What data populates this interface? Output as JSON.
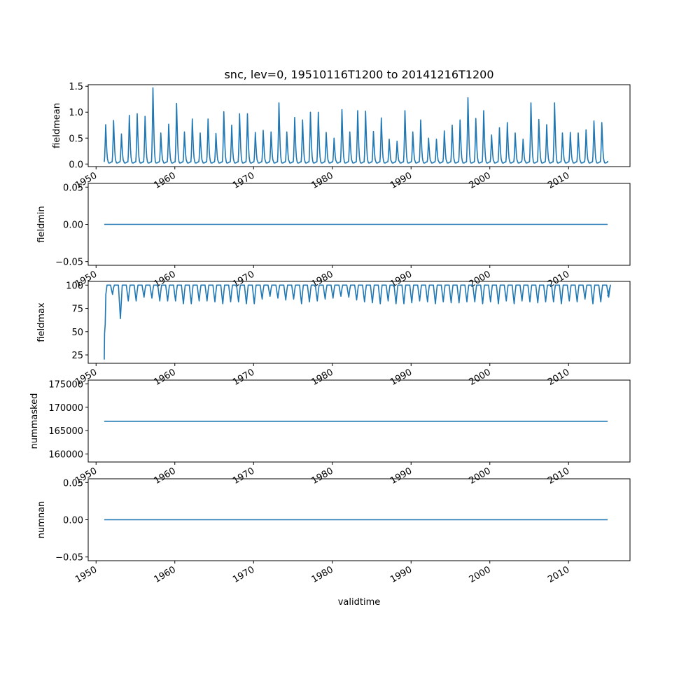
{
  "title": "snc, lev=0, 19510116T1200 to 20141216T1200",
  "chart_data": [
    {
      "type": "line",
      "ylabel": "fieldmean",
      "xlabel": "",
      "xlim": [
        1949.0,
        2017.8
      ],
      "ylim": [
        -0.05,
        1.53
      ],
      "xticks": [
        "1950",
        "1960",
        "1970",
        "1980",
        "1990",
        "2000",
        "2010"
      ],
      "yticks": [
        {
          "value": 0.0,
          "label": "0.0"
        },
        {
          "value": 0.5,
          "label": "0.5"
        },
        {
          "value": 1.0,
          "label": "1.0"
        },
        {
          "value": 1.5,
          "label": "1.5"
        }
      ],
      "series": [
        {
          "kind": "seasonal",
          "x_start": 1951.04,
          "x_end": 2014.96,
          "winter_min": 0.02,
          "peaks": [
            0.76,
            0.84,
            0.58,
            0.94,
            0.97,
            0.92,
            1.47,
            0.6,
            0.77,
            1.17,
            0.62,
            0.87,
            0.6,
            0.87,
            0.59,
            1.01,
            0.75,
            0.97,
            0.97,
            0.61,
            0.65,
            0.62,
            1.18,
            0.62,
            0.9,
            0.85,
            1.0,
            1.0,
            0.61,
            0.5,
            1.05,
            0.62,
            1.03,
            1.02,
            0.63,
            0.89,
            0.48,
            0.44,
            1.03,
            0.62,
            0.85,
            0.5,
            0.48,
            0.64,
            0.75,
            0.85,
            1.28,
            0.88,
            1.03,
            0.56,
            0.7,
            0.8,
            0.6,
            0.48,
            1.18,
            0.86,
            0.76,
            1.18,
            0.6,
            0.61,
            0.6,
            0.66,
            0.83,
            0.8
          ]
        }
      ]
    },
    {
      "type": "line",
      "ylabel": "fieldmin",
      "xlabel": "",
      "xlim": [
        1949.0,
        2017.8
      ],
      "ylim": [
        -0.055,
        0.055
      ],
      "xticks": [
        "1950",
        "1960",
        "1970",
        "1980",
        "1990",
        "2000",
        "2010"
      ],
      "yticks": [
        {
          "value": -0.05,
          "label": "−0.05"
        },
        {
          "value": 0.0,
          "label": "0.00"
        },
        {
          "value": 0.05,
          "label": "0.05"
        }
      ],
      "series": [
        {
          "kind": "constant",
          "x_start": 1951.04,
          "x_end": 2014.96,
          "value": 0.0
        }
      ]
    },
    {
      "type": "line",
      "ylabel": "fieldmax",
      "xlabel": "",
      "xlim": [
        1949.0,
        2017.8
      ],
      "ylim": [
        16,
        104
      ],
      "xticks": [
        "1950",
        "1960",
        "1970",
        "1980",
        "1990",
        "2000",
        "2010"
      ],
      "yticks": [
        {
          "value": 25,
          "label": "25"
        },
        {
          "value": 50,
          "label": "50"
        },
        {
          "value": 75,
          "label": "75"
        },
        {
          "value": 100,
          "label": "100"
        }
      ],
      "series": [
        {
          "kind": "seasonal-max",
          "x_start": 1951.04,
          "x_end": 2014.96,
          "start_value": 20,
          "summer_max": 100,
          "troughs": [
            90,
            64,
            83,
            83,
            87,
            86,
            83,
            83,
            83,
            80,
            80,
            83,
            83,
            82,
            80,
            82,
            82,
            80,
            80,
            85,
            88,
            86,
            84,
            85,
            80,
            82,
            83,
            85,
            86,
            88,
            87,
            84,
            82,
            81,
            80,
            83,
            80,
            80,
            81,
            83,
            82,
            80,
            82,
            81,
            81,
            82,
            82,
            80,
            82,
            80,
            83,
            80,
            83,
            82,
            81,
            82,
            82,
            80,
            83,
            82,
            85,
            80,
            82,
            87
          ]
        }
      ]
    },
    {
      "type": "line",
      "ylabel": "nummasked",
      "xlabel": "",
      "xlim": [
        1949.0,
        2017.8
      ],
      "ylim": [
        158300,
        175800
      ],
      "xticks": [
        "1950",
        "1960",
        "1970",
        "1980",
        "1990",
        "2000",
        "2010"
      ],
      "yticks": [
        {
          "value": 160000,
          "label": "160000"
        },
        {
          "value": 165000,
          "label": "165000"
        },
        {
          "value": 170000,
          "label": "170000"
        },
        {
          "value": 175000,
          "label": "175000"
        }
      ],
      "series": [
        {
          "kind": "constant",
          "x_start": 1951.04,
          "x_end": 2014.96,
          "value": 167000
        }
      ]
    },
    {
      "type": "line",
      "ylabel": "numnan",
      "xlabel": "validtime",
      "xlim": [
        1949.0,
        2017.8
      ],
      "ylim": [
        -0.055,
        0.055
      ],
      "xticks": [
        "1950",
        "1960",
        "1970",
        "1980",
        "1990",
        "2000",
        "2010"
      ],
      "yticks": [
        {
          "value": -0.05,
          "label": "−0.05"
        },
        {
          "value": 0.0,
          "label": "0.00"
        },
        {
          "value": 0.05,
          "label": "0.05"
        }
      ],
      "series": [
        {
          "kind": "constant",
          "x_start": 1951.04,
          "x_end": 2014.96,
          "value": 0.0
        }
      ]
    }
  ]
}
